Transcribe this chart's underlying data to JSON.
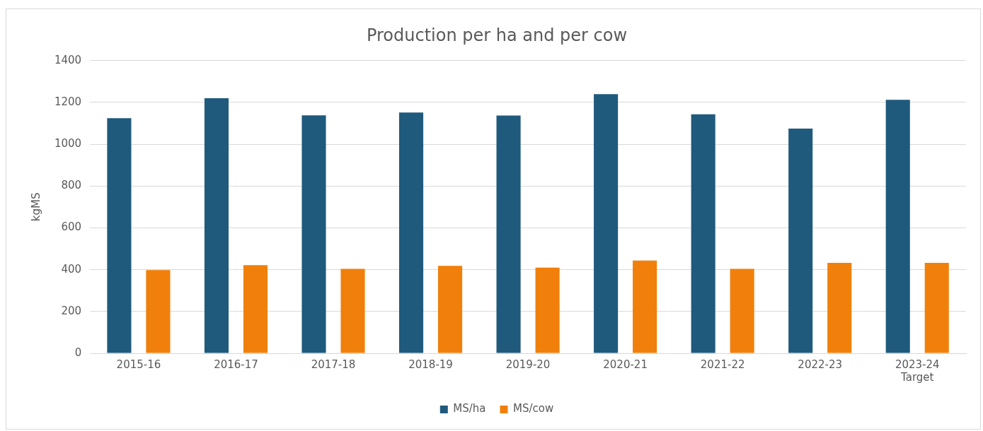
{
  "chart_data": {
    "type": "bar",
    "title": "Production per ha and per cow",
    "ylabel": "kgMS",
    "categories": [
      "2015-16",
      "2016-17",
      "2017-18",
      "2018-19",
      "2019-20",
      "2020-21",
      "2021-22",
      "2022-23",
      "2023-24\nTarget"
    ],
    "series": [
      {
        "name": "MS/ha",
        "color": "#1f5a7d",
        "values": [
          1125,
          1220,
          1138,
          1152,
          1137,
          1240,
          1143,
          1075,
          1213
        ]
      },
      {
        "name": "MS/cow",
        "color": "#f0800b",
        "values": [
          398,
          422,
          404,
          418,
          410,
          444,
          404,
          433,
          433
        ]
      }
    ],
    "ylim": [
      0,
      1400
    ],
    "yticks": [
      0,
      200,
      400,
      600,
      800,
      1000,
      1200,
      1400
    ],
    "grid": "y",
    "legend": "bottom"
  }
}
